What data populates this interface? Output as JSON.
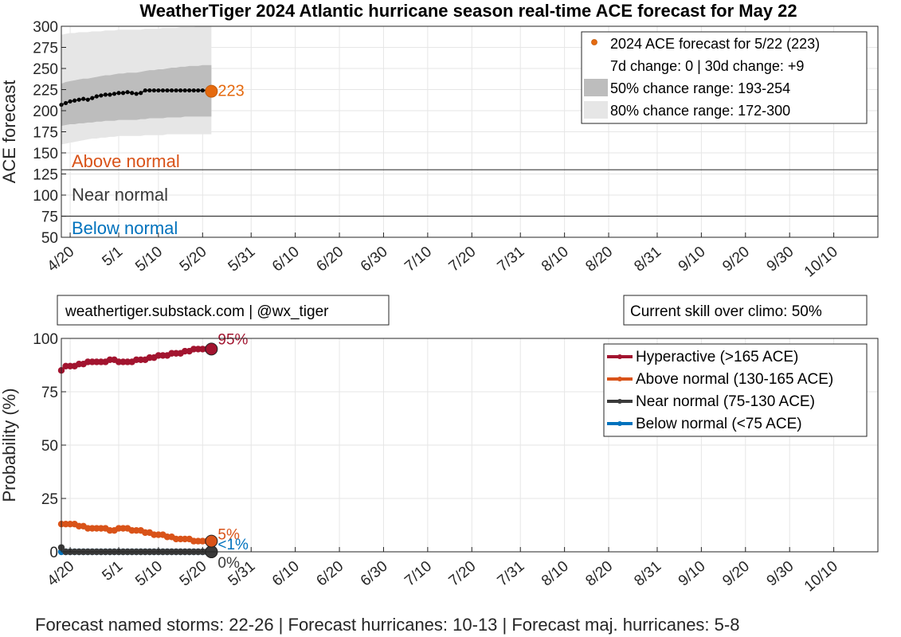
{
  "title": "WeatherTiger 2024 Atlantic hurricane season real-time ACE forecast for May 22",
  "footer": "Forecast named storms: 22-26  |  Forecast hurricanes: 10-13  |  Forecast maj. hurricanes: 5-8",
  "info_box_left": "weathertiger.substack.com | @wx_tiger",
  "info_box_right": "Current skill over climo: 50%",
  "colors": {
    "forecast_orange": "#E56A0F",
    "hyperactive": "#A2142F",
    "above": "#D95319",
    "near": "#3A3A3A",
    "below": "#0072BD",
    "band50": "#BDBDBD",
    "band80": "#E6E6E6"
  },
  "x_tick_labels": [
    "4/20",
    "5/1",
    "5/10",
    "5/20",
    "5/31",
    "6/10",
    "6/20",
    "6/30",
    "7/10",
    "7/20",
    "7/31",
    "8/10",
    "8/20",
    "8/31",
    "9/10",
    "9/20",
    "9/30",
    "10/10"
  ],
  "chart_data": [
    {
      "type": "line",
      "title": "WeatherTiger 2024 Atlantic hurricane season real-time ACE forecast for May 22",
      "ylabel": "ACE forecast",
      "ylim": [
        50,
        300
      ],
      "yticks": [
        50,
        75,
        100,
        125,
        150,
        175,
        200,
        225,
        250,
        275,
        300
      ],
      "xlim": [
        "4/18",
        "10/20"
      ],
      "grid": true,
      "legend_position": "top-right",
      "legend": [
        "2024 ACE forecast for 5/22 (223)",
        "7d change: 0 | 30d change: +9",
        "50% chance range: 193-254",
        "80% chance range: 172-300"
      ],
      "current_label": "223",
      "thresholds": [
        75,
        130
      ],
      "region_labels": [
        "Above normal",
        "Near normal",
        "Below normal"
      ],
      "x": [
        "4/18",
        "4/19",
        "4/20",
        "4/21",
        "4/22",
        "4/23",
        "4/24",
        "4/25",
        "4/26",
        "4/27",
        "4/28",
        "4/29",
        "4/30",
        "5/1",
        "5/2",
        "5/3",
        "5/4",
        "5/5",
        "5/6",
        "5/7",
        "5/8",
        "5/9",
        "5/10",
        "5/11",
        "5/12",
        "5/13",
        "5/14",
        "5/15",
        "5/16",
        "5/17",
        "5/18",
        "5/19",
        "5/20",
        "5/21",
        "5/22"
      ],
      "series": [
        {
          "values": [
            207,
            209,
            211,
            212,
            213,
            214,
            213,
            215,
            217,
            218,
            219,
            219,
            220,
            221,
            221,
            222,
            221,
            220,
            221,
            224,
            224,
            224,
            224,
            224,
            224,
            224,
            224,
            224,
            224,
            224,
            224,
            224,
            224,
            224,
            223
          ]
        }
      ],
      "bands": [
        {
          "range": "80%",
          "lower": [
            160,
            161,
            162,
            163,
            164,
            165,
            166,
            167,
            167,
            168,
            168,
            169,
            169,
            170,
            170,
            170,
            170,
            170,
            170,
            171,
            171,
            171,
            171,
            171,
            172,
            172,
            172,
            172,
            172,
            172,
            172,
            172,
            172,
            172,
            172
          ],
          "upper": [
            290,
            291,
            292,
            292,
            293,
            293,
            293,
            294,
            294,
            294,
            295,
            295,
            295,
            296,
            296,
            296,
            296,
            296,
            296,
            297,
            297,
            297,
            297,
            298,
            298,
            298,
            298,
            299,
            299,
            299,
            299,
            300,
            300,
            300,
            300
          ]
        },
        {
          "range": "50%",
          "lower": [
            182,
            183,
            184,
            184,
            185,
            185,
            186,
            186,
            187,
            187,
            188,
            188,
            188,
            189,
            189,
            189,
            189,
            189,
            190,
            190,
            191,
            191,
            191,
            191,
            192,
            192,
            192,
            192,
            193,
            193,
            193,
            193,
            193,
            193,
            193
          ],
          "upper": [
            232,
            234,
            235,
            236,
            237,
            238,
            238,
            239,
            240,
            241,
            242,
            242,
            243,
            244,
            244,
            245,
            245,
            245,
            246,
            247,
            248,
            248,
            249,
            249,
            250,
            251,
            251,
            252,
            252,
            253,
            253,
            253,
            254,
            254,
            254
          ]
        }
      ]
    },
    {
      "type": "line",
      "ylabel": "Probability (%)",
      "ylim": [
        0,
        100
      ],
      "yticks": [
        0,
        25,
        50,
        75,
        100
      ],
      "xlim": [
        "4/18",
        "10/20"
      ],
      "grid": true,
      "legend_position": "top-right",
      "x": [
        "4/18",
        "4/19",
        "4/20",
        "4/21",
        "4/22",
        "4/23",
        "4/24",
        "4/25",
        "4/26",
        "4/27",
        "4/28",
        "4/29",
        "4/30",
        "5/1",
        "5/2",
        "5/3",
        "5/4",
        "5/5",
        "5/6",
        "5/7",
        "5/8",
        "5/9",
        "5/10",
        "5/11",
        "5/12",
        "5/13",
        "5/14",
        "5/15",
        "5/16",
        "5/17",
        "5/18",
        "5/19",
        "5/20",
        "5/21",
        "5/22"
      ],
      "series": [
        {
          "name": "Hyperactive (>165 ACE)",
          "end_label": "95%",
          "values": [
            85,
            87,
            87,
            87,
            88,
            88,
            89,
            89,
            89,
            89,
            89,
            90,
            90,
            89,
            89,
            89,
            89,
            90,
            90,
            90,
            91,
            91,
            92,
            92,
            92,
            93,
            93,
            93,
            94,
            94,
            95,
            95,
            95,
            95,
            95
          ]
        },
        {
          "name": "Above normal (130-165 ACE)",
          "end_label": "5%",
          "values": [
            13,
            13,
            13,
            13,
            12,
            12,
            11,
            11,
            11,
            11,
            11,
            10,
            10,
            11,
            11,
            11,
            10,
            10,
            10,
            9,
            9,
            8,
            8,
            8,
            7,
            7,
            6,
            6,
            6,
            6,
            5,
            5,
            5,
            5,
            5
          ]
        },
        {
          "name": "Near normal (75-130 ACE)",
          "end_label": "0%",
          "values": [
            2,
            0,
            0,
            0,
            0,
            0,
            0,
            0,
            0,
            0,
            0,
            0,
            0,
            0,
            0,
            0,
            0,
            0,
            0,
            0,
            0,
            0,
            0,
            0,
            0,
            0,
            0,
            0,
            0,
            0,
            0,
            0,
            0,
            0,
            0
          ]
        },
        {
          "name": "Below normal (<75 ACE)",
          "end_label": "<1%",
          "values": [
            0,
            0,
            0,
            0,
            0,
            0,
            0,
            0,
            0,
            0,
            0,
            0,
            0,
            0,
            0,
            0,
            0,
            0,
            0,
            0,
            0,
            0,
            0,
            0,
            0,
            0,
            0,
            0,
            0,
            0,
            0,
            0,
            0,
            0,
            0
          ]
        }
      ]
    }
  ]
}
